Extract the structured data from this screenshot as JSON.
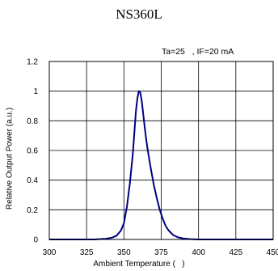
{
  "chart_data": {
    "type": "line",
    "title": "NS360L",
    "condition": "Ta=25   , IF=20 mA",
    "xlabel": "Ambient Temperature (   )",
    "ylabel": "Relative Output Power (a.u.)",
    "xlim": [
      300,
      450
    ],
    "ylim": [
      0,
      1.2
    ],
    "xticks": [
      "300",
      "325",
      "350",
      "375",
      "400",
      "425",
      "450"
    ],
    "yticks": [
      "0",
      "0.2",
      "0.4",
      "0.6",
      "0.8",
      "1",
      "1.2"
    ],
    "grid": true,
    "series": [
      {
        "color": "#000080",
        "x": [
          300,
          310,
          320,
          330,
          338,
          342,
          345,
          348,
          350,
          352,
          354,
          356,
          357,
          358,
          359,
          360,
          361,
          362,
          363,
          364,
          365,
          366,
          368,
          370,
          372,
          374,
          376,
          378,
          380,
          383,
          386,
          390,
          395,
          400,
          410,
          420,
          430,
          440,
          450
        ],
        "y": [
          0,
          0,
          0,
          0,
          0.005,
          0.012,
          0.025,
          0.06,
          0.11,
          0.22,
          0.38,
          0.58,
          0.72,
          0.86,
          0.95,
          1.0,
          0.99,
          0.93,
          0.84,
          0.75,
          0.67,
          0.6,
          0.48,
          0.37,
          0.28,
          0.2,
          0.14,
          0.09,
          0.06,
          0.03,
          0.015,
          0.006,
          0.002,
          0,
          0,
          0,
          0,
          0,
          0
        ]
      }
    ]
  }
}
